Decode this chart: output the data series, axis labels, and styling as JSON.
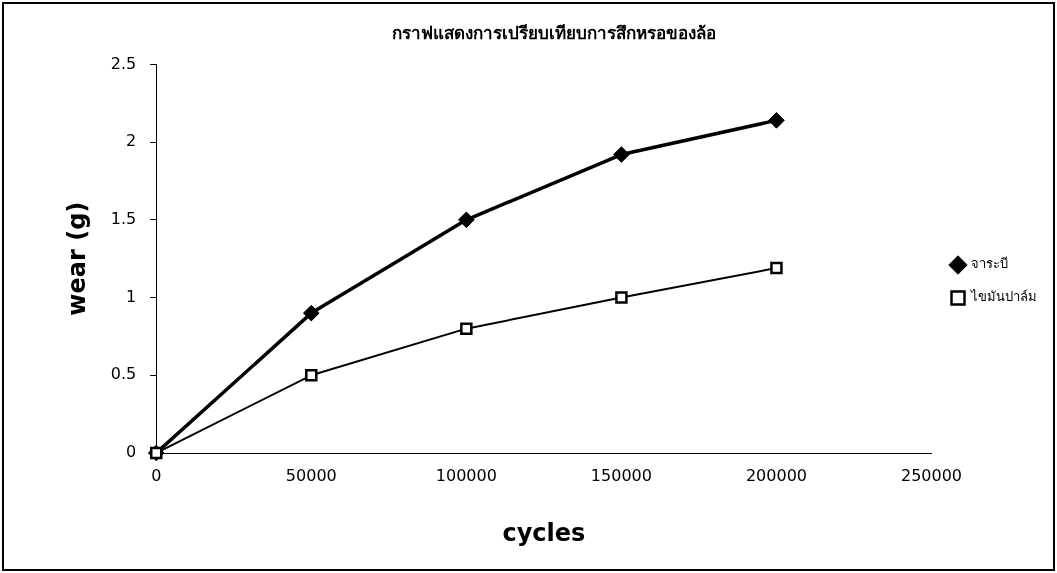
{
  "chart_data": {
    "type": "line",
    "title": "กราฟแสดงการเปรียบเทียบการสึกหรอของล้อ",
    "xlabel": "cycles",
    "ylabel": "wear (g)",
    "x": [
      0,
      50000,
      100000,
      150000,
      200000
    ],
    "series": [
      {
        "name": "จาระบี",
        "color": "#000000",
        "marker": "diamond",
        "values": [
          0,
          0.9,
          1.5,
          1.92,
          2.14
        ]
      },
      {
        "name": "ไขมันปาล์ม",
        "color": "#000000",
        "marker": "square",
        "values": [
          0,
          0.5,
          0.8,
          1.0,
          1.19
        ]
      }
    ],
    "xlim": [
      0,
      250000
    ],
    "xticks": [
      0,
      50000,
      100000,
      150000,
      200000,
      250000
    ],
    "ylim": [
      0,
      2.5
    ],
    "yticks": [
      0,
      0.5,
      1,
      1.5,
      2,
      2.5
    ],
    "grid": false,
    "legend": "right",
    "line_style": "solid"
  }
}
